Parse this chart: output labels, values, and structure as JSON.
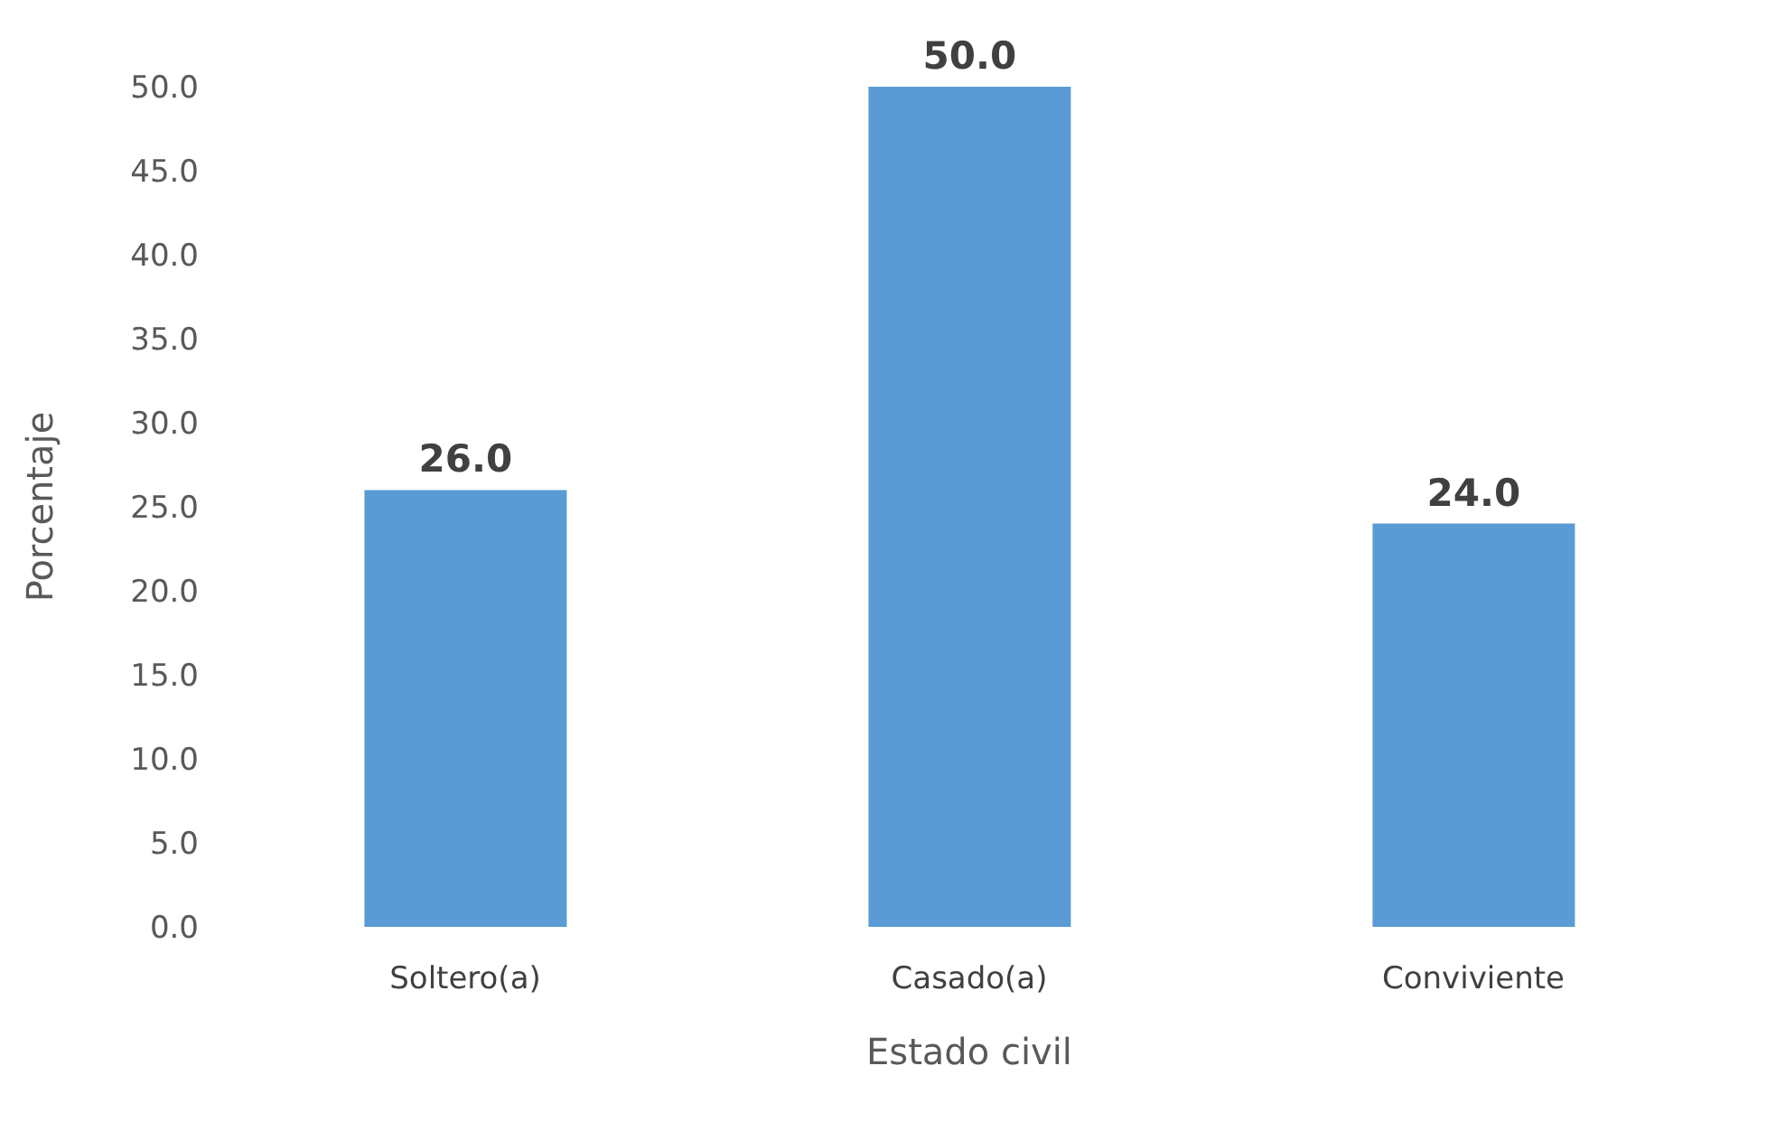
{
  "chart_data": {
    "type": "bar",
    "xlabel": "Estado civil",
    "ylabel": "Porcentaje",
    "categories": [
      "Soltero(a)",
      "Casado(a)",
      "Conviviente"
    ],
    "values": [
      26,
      50,
      24
    ],
    "value_labels": [
      "26.0",
      "50.0",
      "24.0"
    ],
    "color": "#5b9bd5",
    "ylim": [
      0,
      50
    ],
    "yticks": [
      {
        "value": 0,
        "label": "0.0"
      },
      {
        "value": 5,
        "label": "5.0"
      },
      {
        "value": 10,
        "label": "10.0"
      },
      {
        "value": 15,
        "label": "15.0"
      },
      {
        "value": 20,
        "label": "20.0"
      },
      {
        "value": 25,
        "label": "25.0"
      },
      {
        "value": 30,
        "label": "30.0"
      },
      {
        "value": 35,
        "label": "35.0"
      },
      {
        "value": 40,
        "label": "40.0"
      },
      {
        "value": 45,
        "label": "45.0"
      },
      {
        "value": 50,
        "label": "50.0"
      }
    ],
    "grid": false,
    "legend": false
  }
}
